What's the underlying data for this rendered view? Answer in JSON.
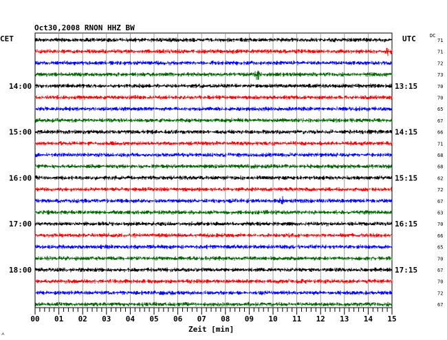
{
  "chart_data": {
    "type": "line",
    "title": "Oct30,2008   RNON HHZ BW",
    "left_axis_label": "CET",
    "right_axis_label": "UTC",
    "dc_label": "DC",
    "xlabel": "Zeit [min]",
    "xlim": [
      0,
      15
    ],
    "x_ticks": [
      "00",
      "01",
      "02",
      "03",
      "04",
      "05",
      "06",
      "07",
      "08",
      "09",
      "10",
      "11",
      "12",
      "13",
      "14",
      "15"
    ],
    "grid": true,
    "trace_colors": [
      "#000000",
      "#ff0000",
      "#0000ff",
      "#006400"
    ],
    "left_hour_labels": [
      {
        "row": 4,
        "label": "14:00"
      },
      {
        "row": 8,
        "label": "15:00"
      },
      {
        "row": 12,
        "label": "16:00"
      },
      {
        "row": 16,
        "label": "17:00"
      },
      {
        "row": 20,
        "label": "18:00"
      }
    ],
    "right_hour_labels": [
      {
        "row": 4,
        "label": "13:15"
      },
      {
        "row": 8,
        "label": "14:15"
      },
      {
        "row": 12,
        "label": "15:15"
      },
      {
        "row": 16,
        "label": "16:15"
      },
      {
        "row": 20,
        "label": "17:15"
      }
    ],
    "dc_values": [
      "71",
      "71",
      "72",
      "73",
      "70",
      "70",
      "65",
      "67",
      "66",
      "71",
      "68",
      "68",
      "62",
      "72",
      "67",
      "63",
      "70",
      "66",
      "65",
      "70",
      "67",
      "70",
      "72",
      "67"
    ],
    "events": [
      {
        "row": 3,
        "minute": 9.35,
        "amplitude": 8
      },
      {
        "row": 14,
        "minute": 10.35,
        "amplitude": 6
      },
      {
        "row": 1,
        "minute": 14.85,
        "amplitude": 4
      }
    ]
  },
  "corner_mark": "ㅅ"
}
